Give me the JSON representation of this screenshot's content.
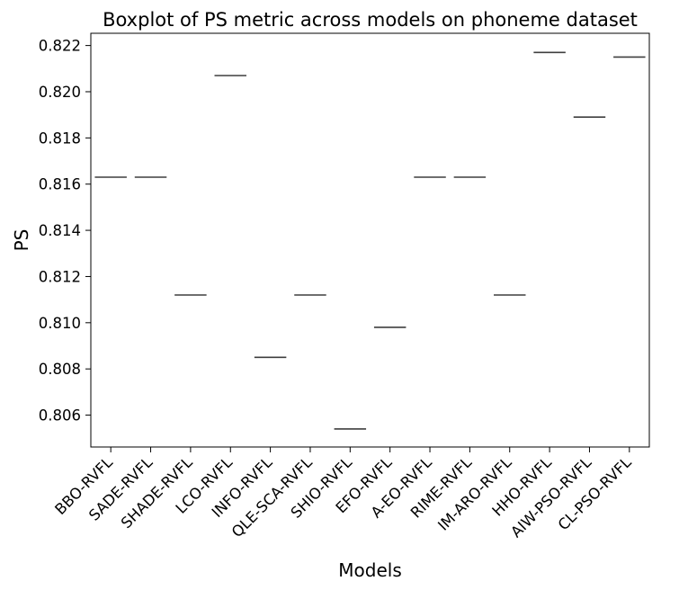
{
  "chart_data": {
    "type": "box",
    "title": "Boxplot of PS metric across models on phoneme dataset",
    "xlabel": "Models",
    "ylabel": "PS",
    "ylim": [
      0.80462,
      0.82253
    ],
    "yticks": [
      0.806,
      0.808,
      0.81,
      0.812,
      0.814,
      0.816,
      0.818,
      0.82,
      0.822
    ],
    "ytick_labels": [
      "0.806",
      "0.808",
      "0.810",
      "0.812",
      "0.814",
      "0.816",
      "0.818",
      "0.820",
      "0.822"
    ],
    "grid": false,
    "categories": [
      "BBO-RVFL",
      "SADE-RVFL",
      "SHADE-RVFL",
      "LCO-RVFL",
      "INFO-RVFL",
      "QLE-SCA-RVFL",
      "SHIO-RVFL",
      "EFO-RVFL",
      "A-EO-RVFL",
      "RIME-RVFL",
      "IM-ARO-RVFL",
      "HHO-RVFL",
      "AIW-PSO-RVFL",
      "CL-PSO-RVFL"
    ],
    "values": [
      0.8163,
      0.8163,
      0.8112,
      0.8207,
      0.8085,
      0.8112,
      0.8054,
      0.8098,
      0.8163,
      0.8163,
      0.8112,
      0.8217,
      0.8189,
      0.8215
    ],
    "line_color": "#3f3f3f"
  }
}
